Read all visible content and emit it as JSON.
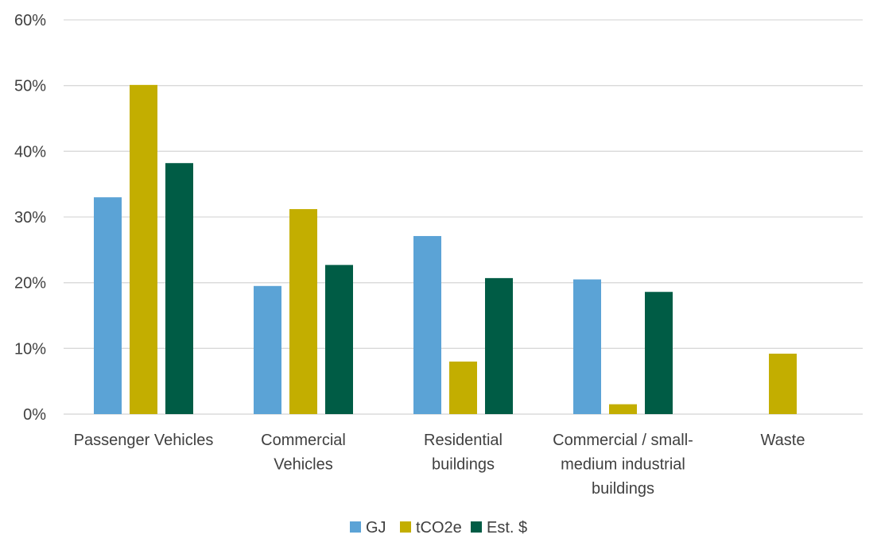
{
  "chart_data": {
    "type": "bar",
    "title": "",
    "xlabel": "",
    "ylabel": "",
    "categories": [
      [
        "Passenger Vehicles"
      ],
      [
        "Commercial",
        "Vehicles"
      ],
      [
        "Residential",
        "buildings"
      ],
      [
        "Commercial / small-",
        "medium industrial",
        "buildings"
      ],
      [
        "Waste"
      ]
    ],
    "series": [
      {
        "name": "GJ",
        "color": "#5BA3D6",
        "values": [
          33,
          19.5,
          27.1,
          20.5,
          0
        ]
      },
      {
        "name": "tCO2e",
        "color": "#C3AE00",
        "values": [
          50.1,
          31.2,
          8.0,
          1.5,
          9.2
        ]
      },
      {
        "name": "Est. $",
        "color": "#005C45",
        "values": [
          38.2,
          22.7,
          20.7,
          18.6,
          0
        ]
      }
    ],
    "ylim": [
      0,
      60
    ],
    "yticks": [
      0,
      10,
      20,
      30,
      40,
      50,
      60
    ],
    "ytick_labels": [
      "0%",
      "10%",
      "20%",
      "30%",
      "40%",
      "50%",
      "60%"
    ],
    "grid": true,
    "legend_position": "bottom-center",
    "gridline_color": "#D9D9D9"
  }
}
